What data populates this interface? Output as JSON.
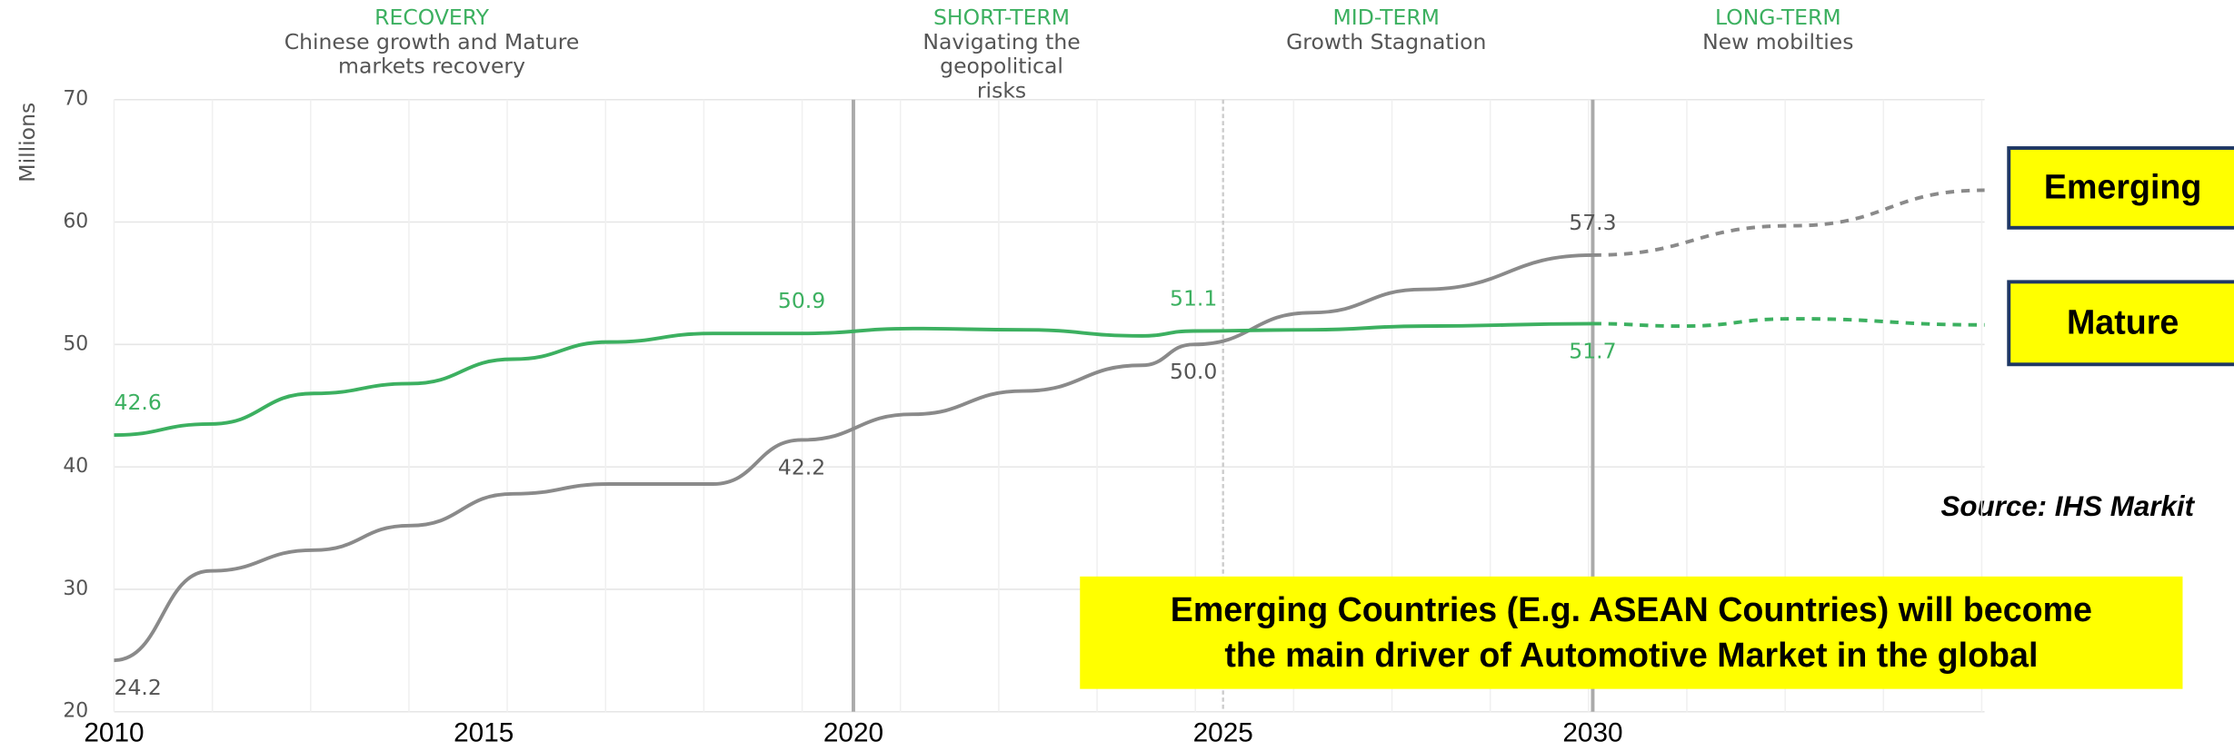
{
  "chart_data": {
    "type": "line",
    "y_label": "Millions",
    "phases": [
      {
        "title": "RECOVERY",
        "subtitle": "Chinese growth and Mature markets recovery"
      },
      {
        "title": "SHORT-TERM",
        "subtitle": "Navigating the geopolitical risks"
      },
      {
        "title": "MID-TERM",
        "subtitle": "Growth Stagnation"
      },
      {
        "title": "LONG-TERM",
        "subtitle": "New mobilties"
      }
    ],
    "phase_lines": [
      2020,
      2025,
      2030
    ],
    "xlim": [
      2010,
      2035.3
    ],
    "xticks": [
      2010,
      2015,
      2020,
      2025,
      2030
    ],
    "ylim": [
      20,
      70
    ],
    "yticks": [
      20,
      30,
      40,
      50,
      60,
      70
    ],
    "grid": true,
    "forecast_from": 2030,
    "series": [
      {
        "name": "Emerging",
        "color": "#8a8a8a",
        "x": [
          2010,
          2011.3,
          2012.7,
          2014,
          2015.4,
          2016.7,
          2018.1,
          2019.3,
          2020.8,
          2022.3,
          2023.9,
          2024.6,
          2026.2,
          2027.7,
          2030,
          2032.7,
          2035.3
        ],
        "values": [
          24.2,
          31.5,
          33.2,
          35.2,
          37.8,
          38.6,
          38.6,
          42.2,
          44.3,
          46.2,
          48.3,
          50.0,
          52.6,
          54.5,
          57.3,
          59.7,
          62.6
        ],
        "labels": [
          {
            "x": 2010,
            "y": 24.2,
            "label": "24.2"
          },
          {
            "x": 2019.3,
            "y": 42.2,
            "label": "42.2"
          },
          {
            "x": 2024.6,
            "y": 50.0,
            "label": "50.0"
          },
          {
            "x": 2030,
            "y": 57.3,
            "label": "57.3"
          }
        ]
      },
      {
        "name": "Mature",
        "color": "#3cb060",
        "x": [
          2010,
          2011.3,
          2012.7,
          2014,
          2015.4,
          2016.7,
          2018.1,
          2019.3,
          2020.8,
          2022.3,
          2023.9,
          2024.6,
          2026.2,
          2027.7,
          2030,
          2031.2,
          2032.7,
          2035.3
        ],
        "values": [
          42.6,
          43.5,
          46,
          46.8,
          48.8,
          50.2,
          50.9,
          50.9,
          51.3,
          51.2,
          50.7,
          51.1,
          51.2,
          51.5,
          51.7,
          51.5,
          52.1,
          51.6
        ],
        "labels": [
          {
            "x": 2010,
            "y": 42.6,
            "label": "42.6"
          },
          {
            "x": 2019.3,
            "y": 50.9,
            "label": "50.9"
          },
          {
            "x": 2024.6,
            "y": 51.1,
            "label": "51.1"
          },
          {
            "x": 2030,
            "y": 51.7,
            "label": "51.7"
          }
        ]
      }
    ],
    "source": "Source: IHS Markit",
    "callout": [
      "Emerging Countries (E.g. ASEAN Countries) will become",
      "the main driver of Automotive Market in the global"
    ]
  }
}
